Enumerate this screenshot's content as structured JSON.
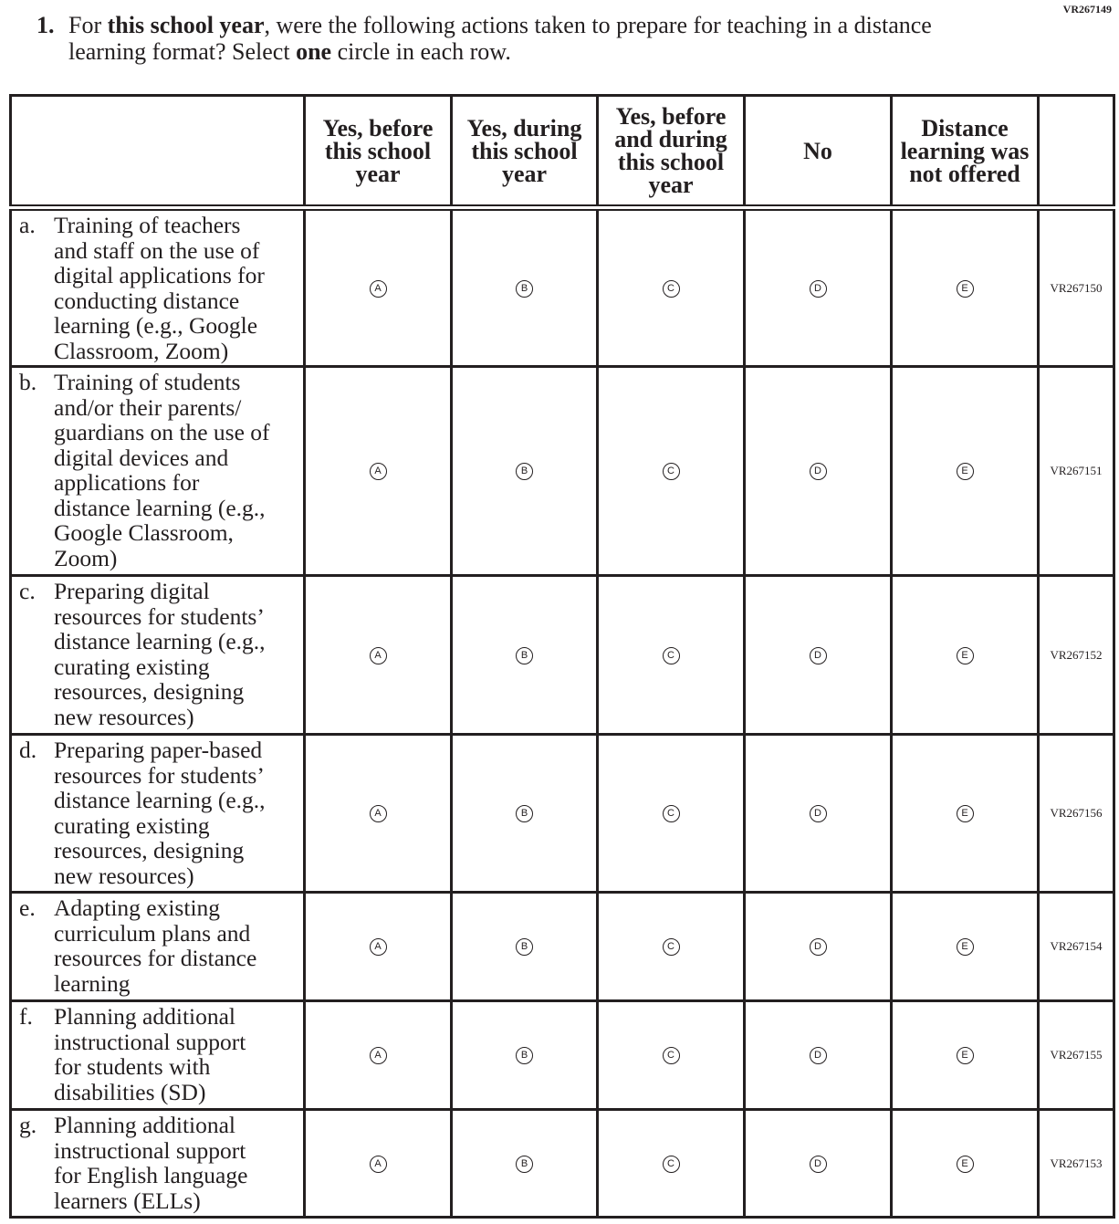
{
  "form_id": "VR267149",
  "question": {
    "number": "1.",
    "parts": [
      {
        "text": "For ",
        "bold": false
      },
      {
        "text": "this school year",
        "bold": true
      },
      {
        "text": ", were the following actions taken to prepare for teaching in a distance learning format? Select ",
        "bold": false
      },
      {
        "text": "one",
        "bold": true
      },
      {
        "text": " circle in each row.",
        "bold": false
      }
    ]
  },
  "columns": [
    [
      "Yes, before",
      "this school",
      "year"
    ],
    [
      "Yes, during",
      "this school",
      "year"
    ],
    [
      "Yes, before",
      "and during",
      "this school",
      "year"
    ],
    [
      "No"
    ],
    [
      "Distance",
      "learning was",
      "not offered"
    ]
  ],
  "options": [
    "A",
    "B",
    "C",
    "D",
    "E"
  ],
  "rows": [
    {
      "letter": "a.",
      "lines": [
        "Training of teachers",
        "and staff on the use of",
        "digital applications for",
        "conducting distance",
        "learning (e.g., Google",
        "Classroom, Zoom)"
      ],
      "code": "VR267150"
    },
    {
      "letter": "b.",
      "lines": [
        "Training of students",
        "and/or their parents/",
        "guardians on the use of",
        "digital devices and",
        "applications for",
        "distance learning (e.g.,",
        "Google Classroom,",
        "Zoom)"
      ],
      "code": "VR267151"
    },
    {
      "letter": "c.",
      "lines": [
        "Preparing digital",
        "resources for students’",
        "distance learning (e.g.,",
        "curating existing",
        "resources, designing",
        "new resources)"
      ],
      "code": "VR267152"
    },
    {
      "letter": "d.",
      "lines": [
        "Preparing paper-based",
        "resources for students’",
        "distance learning (e.g.,",
        "curating existing",
        "resources, designing",
        "new resources)"
      ],
      "code": "VR267156"
    },
    {
      "letter": "e.",
      "lines": [
        "Adapting existing",
        "curriculum plans and",
        "resources for distance",
        "learning"
      ],
      "code": "VR267154"
    },
    {
      "letter": "f.",
      "lines": [
        "Planning additional",
        "instructional support",
        "for students with",
        "disabilities (SD)"
      ],
      "code": "VR267155"
    },
    {
      "letter": "g.",
      "lines": [
        "Planning additional",
        "instructional support",
        "for English language",
        "learners (ELLs)"
      ],
      "code": "VR267153"
    }
  ]
}
